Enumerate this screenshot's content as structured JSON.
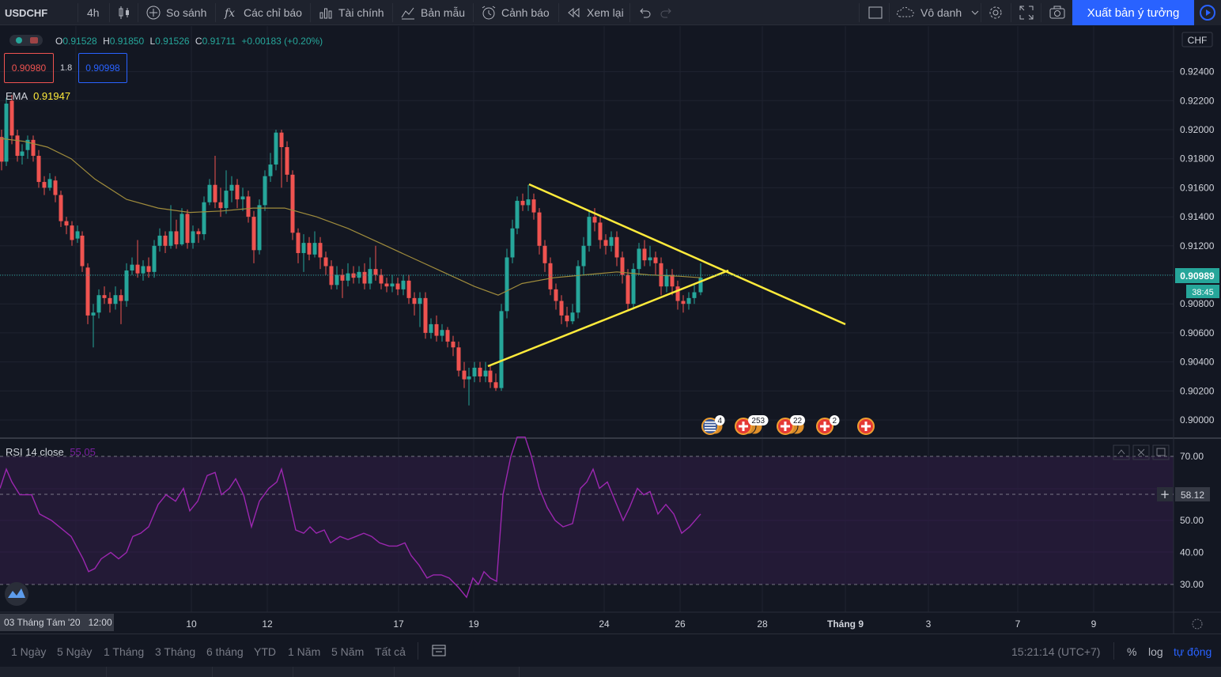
{
  "toolbar": {
    "symbol": "USDCHF",
    "interval": "4h",
    "compare": "So sánh",
    "indicators": "Các chỉ báo",
    "financials": "Tài chính",
    "templates": "Bản mẫu",
    "alert": "Cảnh báo",
    "replay": "Xem lại",
    "layout_name": "Vô danh",
    "publish": "Xuất bản ý tưởng"
  },
  "legend": {
    "open_label": "O",
    "open": "0.91528",
    "high_label": "H",
    "high": "0.91850",
    "low_label": "L",
    "low": "0.91526",
    "close_label": "C",
    "close": "0.91711",
    "change": "+0.00183 (+0.20%)",
    "sell_price": "0.90980",
    "spread": "1.8",
    "buy_price": "0.90998",
    "ema_label": "EMA",
    "ema_value": "0.91947"
  },
  "currency": "CHF",
  "price_axis": [
    "0.92400",
    "0.92200",
    "0.92000",
    "0.91800",
    "0.91600",
    "0.91400",
    "0.91200",
    "0.90800",
    "0.90600",
    "0.90400",
    "0.90200",
    "0.90000"
  ],
  "current_price": "0.90989",
  "countdown": "38:45",
  "events": [
    "4",
    "253",
    "22",
    "2"
  ],
  "rsi": {
    "title": "RSI 14 close",
    "value": "55.05",
    "axis": [
      "70.00",
      "50.00",
      "40.00",
      "30.00"
    ],
    "crosshair_value": "58.12"
  },
  "time_axis": {
    "cursor_label": "03 Tháng Tám '20   12:00",
    "ticks": [
      "10",
      "12",
      "17",
      "19",
      "24",
      "26",
      "28",
      "Tháng 9",
      "3",
      "7",
      "9"
    ]
  },
  "ranges": [
    "1 Ngày",
    "5 Ngày",
    "1 Tháng",
    "3 Tháng",
    "6 tháng",
    "YTD",
    "1 Năm",
    "5 Năm",
    "Tất cả"
  ],
  "bottom_right": {
    "clock": "15:21:14 (UTC+7)",
    "percent": "%",
    "log": "log",
    "auto": "tự động"
  },
  "colors": {
    "up": "#26a69a",
    "down": "#ef5350",
    "trendline": "#ffeb3b",
    "ema": "#a08c3c",
    "rsi_line": "#9c27b0",
    "accent": "#2962ff"
  }
}
